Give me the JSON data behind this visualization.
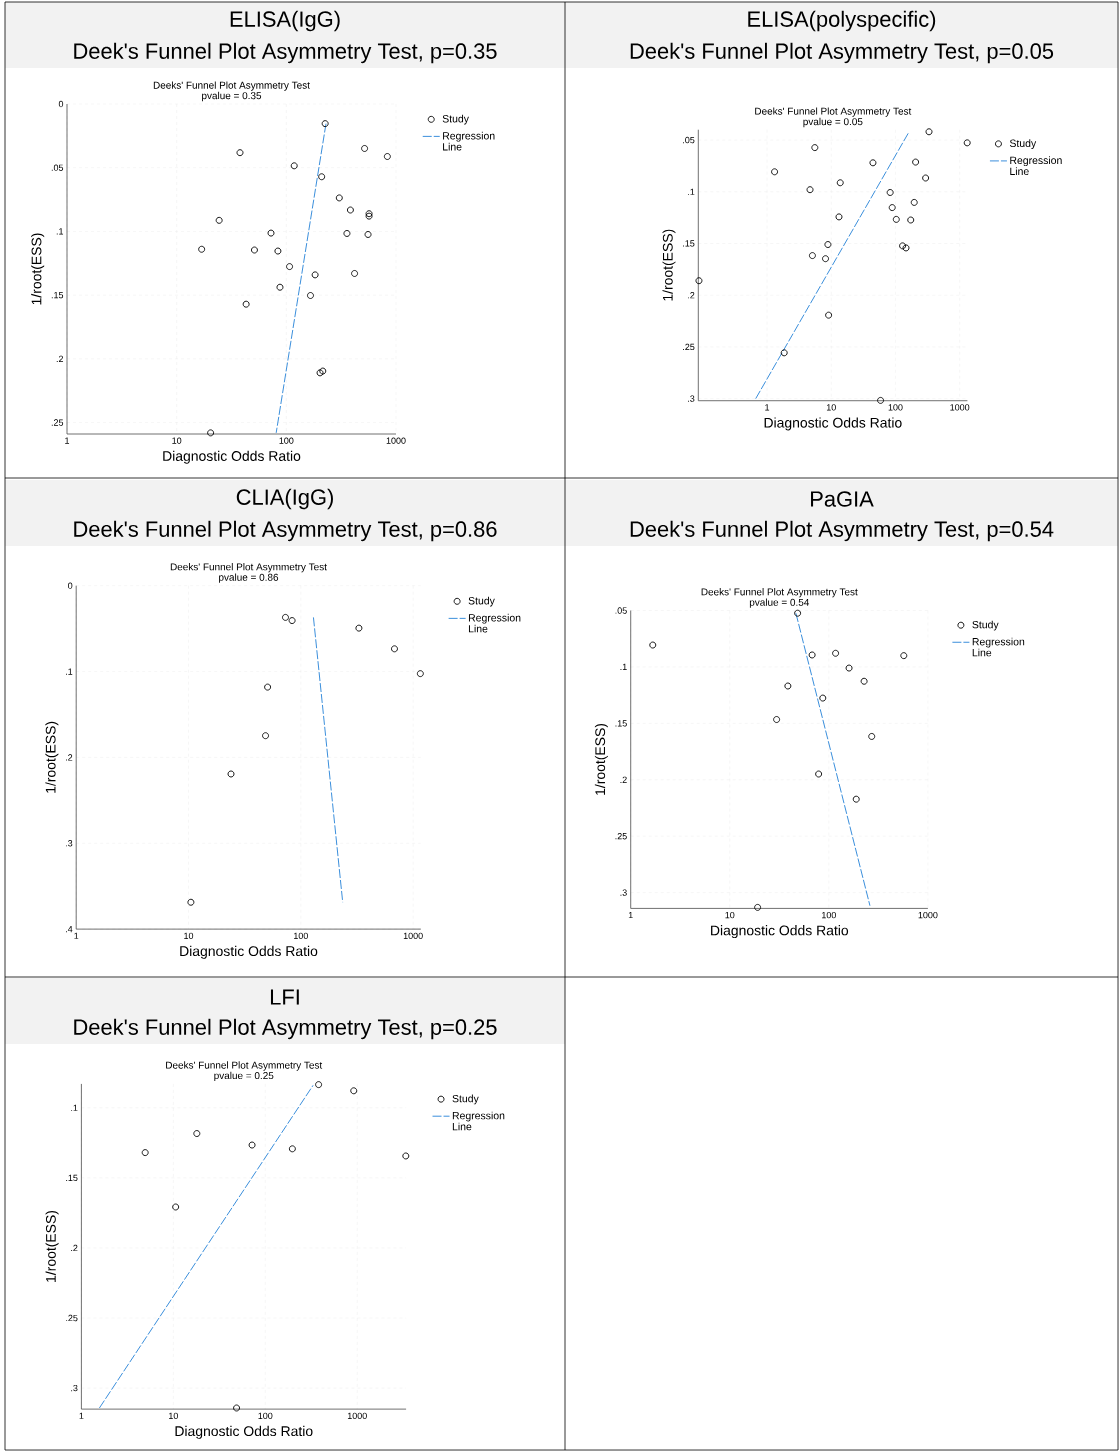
{
  "chart_data": [
    {
      "type": "scatter",
      "title": "ELISA(IgG)",
      "subtitle": "Deek's Funnel Plot Asymmetry Test, p=0.35",
      "annotations": [
        "Deeks' Funnel Plot Asymmetry Test",
        "pvalue =  0.35"
      ],
      "xlabel": "Diagnostic Odds Ratio",
      "ylabel": "1/root(ESS)",
      "log": "x",
      "grid": true,
      "legend": "right",
      "xlim": [
        1,
        1000
      ],
      "xticks": [
        1,
        10,
        100,
        1000
      ],
      "ylim": [
        0.259,
        0
      ],
      "yticks": [
        0,
        {
          "value": 0.05,
          "label": ".05"
        },
        {
          "value": 0.1,
          "label": ".1"
        },
        {
          "value": 0.15,
          "label": ".15"
        },
        {
          "value": 0.2,
          "label": ".2"
        },
        {
          "value": 0.25,
          "label": ".25"
        }
      ],
      "series": [
        {
          "name": "Study",
          "type": "scatter",
          "marker": "circle",
          "color": "#000000",
          "x": [
            226,
            37.8,
            118,
            517,
            834,
            210,
            304,
            384,
            568,
            568,
            24.4,
            72.5,
            357,
            556,
            16.9,
            51.2,
            83.8,
            107,
            183,
            419,
            87.5,
            166,
            43,
            215,
            203,
            20.4
          ],
          "values": [
            0.0154,
            0.0382,
            0.0485,
            0.0349,
            0.0412,
            0.0571,
            0.0737,
            0.0832,
            0.0861,
            0.088,
            0.0913,
            0.1013,
            0.1016,
            0.1024,
            0.114,
            0.1146,
            0.1154,
            0.1276,
            0.1341,
            0.133,
            0.1438,
            0.1503,
            0.1571,
            0.2096,
            0.211,
            0.2581
          ]
        },
        {
          "name": "Regression Line",
          "type": "line",
          "line_style": "dashed",
          "color": "#3b8fdc",
          "x": [
            230,
            80.8
          ],
          "values": [
            0.0154,
            0.2581
          ]
        }
      ]
    },
    {
      "type": "scatter",
      "title": "ELISA(polyspecific)",
      "subtitle": "Deek's Funnel Plot Asymmetry Test, p=0.05",
      "annotations": [
        "Deeks' Funnel Plot Asymmetry Test",
        "pvalue =  0.05"
      ],
      "xlabel": "Diagnostic Odds Ratio",
      "ylabel": "1/root(ESS)",
      "log": "x",
      "grid": true,
      "legend": "right",
      "xlim": [
        0.085,
        1320
      ],
      "xticks": [
        1,
        10,
        100,
        1000
      ],
      "ylim": [
        0.302,
        0.04
      ],
      "yticks": [
        {
          "value": 0.05,
          "label": ".05"
        },
        {
          "value": 0.1,
          "label": ".1"
        },
        {
          "value": 0.15,
          "label": ".15"
        },
        {
          "value": 0.2,
          "label": ".2"
        },
        {
          "value": 0.25,
          "label": ".25"
        },
        {
          "value": 0.3,
          "label": ".3"
        }
      ],
      "series": [
        {
          "name": "Study",
          "type": "scatter",
          "marker": "circle",
          "color": "#000000",
          "x": [
            333,
            1310,
            5.55,
            1.31,
            44.6,
            206,
            295,
            13.8,
            4.67,
            82.7,
            196,
            89,
            103,
            173,
            13.2,
            8.87,
            129,
            146,
            5.09,
            8.14,
            0.087,
            9.1,
            1.85,
            58.6
          ],
          "values": [
            0.042,
            0.0527,
            0.0573,
            0.0807,
            0.072,
            0.0713,
            0.0867,
            0.0913,
            0.098,
            0.1007,
            0.1103,
            0.1153,
            0.1267,
            0.1273,
            0.1243,
            0.151,
            0.1523,
            0.1543,
            0.1617,
            0.1647,
            0.186,
            0.2193,
            0.2557,
            0.3017
          ]
        },
        {
          "name": "Regression Line",
          "type": "line",
          "line_style": "dashed",
          "color": "#3b8fdc",
          "x": [
            0.666,
            163
          ],
          "values": [
            0.3,
            0.042
          ]
        }
      ]
    },
    {
      "type": "scatter",
      "title": "CLIA(IgG)",
      "subtitle": "Deek's Funnel Plot Asymmetry Test, p=0.86",
      "annotations": [
        "Deeks' Funnel Plot Asymmetry Test",
        "pvalue =  0.86"
      ],
      "xlabel": "Diagnostic Odds Ratio",
      "ylabel": "1/root(ESS)",
      "log": "x",
      "grid": true,
      "legend": "right",
      "xlim": [
        1,
        1170
      ],
      "xticks": [
        1,
        10,
        100,
        1000
      ],
      "ylim": [
        0.4,
        0
      ],
      "yticks": [
        0,
        {
          "value": 0.1,
          "label": ".1"
        },
        {
          "value": 0.2,
          "label": ".2"
        },
        {
          "value": 0.3,
          "label": ".3"
        },
        {
          "value": 0.4,
          "label": ".4"
        }
      ],
      "series": [
        {
          "name": "Study",
          "type": "scatter",
          "marker": "circle",
          "color": "#000000",
          "x": [
            73,
            83.6,
            329,
            682,
            1159,
            50.6,
            48.5,
            23.9,
            10.5
          ],
          "values": [
            0.0369,
            0.0406,
            0.0494,
            0.0735,
            0.1024,
            0.1181,
            0.1747,
            0.2193,
            0.3687
          ]
        },
        {
          "name": "Regression Line",
          "type": "line",
          "line_style": "dashed",
          "color": "#3b8fdc",
          "x": [
            129.5,
            236
          ],
          "values": [
            0.0369,
            0.3687
          ]
        }
      ]
    },
    {
      "type": "scatter",
      "title": "PaGIA",
      "subtitle": "Deek's Funnel Plot Asymmetry Test, p=0.54",
      "annotations": [
        "Deeks' Funnel Plot Asymmetry Test",
        "pvalue =  0.54"
      ],
      "xlabel": "Diagnostic Odds Ratio",
      "ylabel": "1/root(ESS)",
      "log": "x",
      "grid": true,
      "legend": "right",
      "xlim": [
        1,
        1000
      ],
      "xticks": [
        1,
        10,
        100,
        1000
      ],
      "ylim": [
        0.314,
        0.05
      ],
      "yticks": [
        {
          "value": 0.05,
          "label": ".05"
        },
        {
          "value": 0.1,
          "label": ".1"
        },
        {
          "value": 0.15,
          "label": ".15"
        },
        {
          "value": 0.2,
          "label": ".2"
        },
        {
          "value": 0.25,
          "label": ".25"
        },
        {
          "value": 0.3,
          "label": ".3"
        }
      ],
      "series": [
        {
          "name": "Study",
          "type": "scatter",
          "marker": "circle",
          "color": "#000000",
          "x": [
            48.4,
            1.67,
            67.8,
            117,
            571,
            160,
            227,
            38.6,
            86.9,
            29.7,
            271,
            78.9,
            189,
            19.1
          ],
          "values": [
            0.0524,
            0.0806,
            0.0894,
            0.0879,
            0.09,
            0.101,
            0.1127,
            0.1169,
            0.1276,
            0.1466,
            0.1616,
            0.1949,
            0.2172,
            0.3131
          ]
        },
        {
          "name": "Regression Line",
          "type": "line",
          "line_style": "dashed",
          "color": "#3b8fdc",
          "x": [
            46.5,
            260
          ],
          "values": [
            0.0524,
            0.3116
          ]
        }
      ]
    },
    {
      "type": "scatter",
      "title": "LFI",
      "subtitle": "Deek's Funnel Plot Asymmetry Test, p=0.25",
      "annotations": [
        "Deeks' Funnel Plot Asymmetry Test",
        "pvalue =  0.25"
      ],
      "xlabel": "Diagnostic Odds Ratio",
      "ylabel": "1/root(ESS)",
      "log": "x",
      "grid": true,
      "legend": "right",
      "xlim": [
        1,
        3400
      ],
      "xticks": [
        1,
        10,
        100,
        1000
      ],
      "ylim": [
        0.315,
        0.083
      ],
      "yticks": [
        {
          "value": 0.1,
          "label": ".1"
        },
        {
          "value": 0.15,
          "label": ".15"
        },
        {
          "value": 0.2,
          "label": ".2"
        },
        {
          "value": 0.25,
          "label": ".25"
        },
        {
          "value": 0.3,
          "label": ".3"
        }
      ],
      "series": [
        {
          "name": "Study",
          "type": "scatter",
          "marker": "circle",
          "color": "#000000",
          "x": [
            380,
            916,
            18,
            71.8,
            197,
            4.94,
            3375,
            10.6,
            48.7
          ],
          "values": [
            0.0835,
            0.0879,
            0.1184,
            0.1266,
            0.1293,
            0.132,
            0.1344,
            0.1708,
            0.3142
          ]
        },
        {
          "name": "Regression Line",
          "type": "line",
          "line_style": "dashed",
          "color": "#3b8fdc",
          "x": [
            1.57,
            331
          ],
          "values": [
            0.3142,
            0.084
          ]
        }
      ]
    }
  ]
}
